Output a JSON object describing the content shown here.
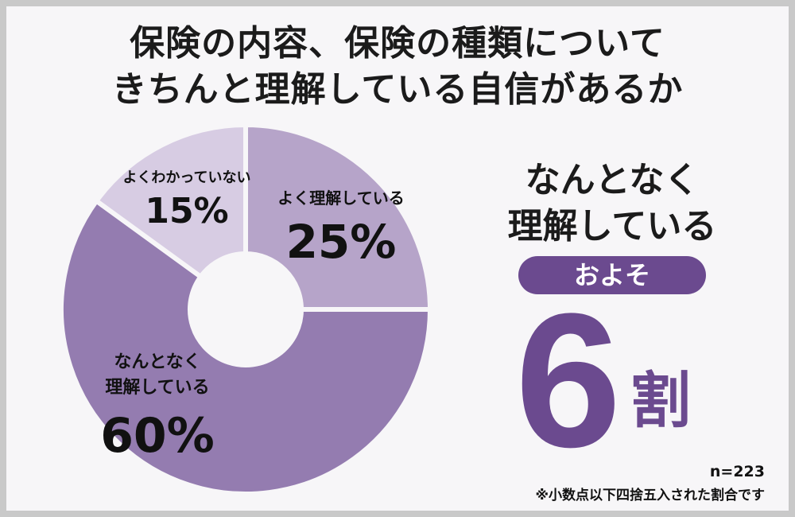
{
  "title": {
    "line1": "保険の内容、保険の種類について",
    "line2": "きちんと理解している自信があるか"
  },
  "chart_data": {
    "type": "pie",
    "donut": true,
    "start": "12 o'clock, clockwise",
    "slices": [
      {
        "label": "よく理解している",
        "value": 25,
        "display": "25%",
        "color": "#b6a4c9"
      },
      {
        "label": "なんとなく 理解している",
        "value": 60,
        "display": "60%",
        "color": "#947cb0"
      },
      {
        "label": "よくわかっていない",
        "value": 15,
        "display": "15%",
        "color": "#d7cce3"
      }
    ],
    "legend": "none (labels on slices)"
  },
  "highlight": {
    "line1": "なんとなく",
    "line2": "理解している",
    "pill": "およそ",
    "number": "6",
    "unit": "割"
  },
  "footer": {
    "n": "n=223",
    "note": "※小数点以下四捨五入された割合です"
  },
  "colors": {
    "accent": "#6b4a8f",
    "background": "#f7f6f8",
    "frame": "#c9c9c9"
  }
}
